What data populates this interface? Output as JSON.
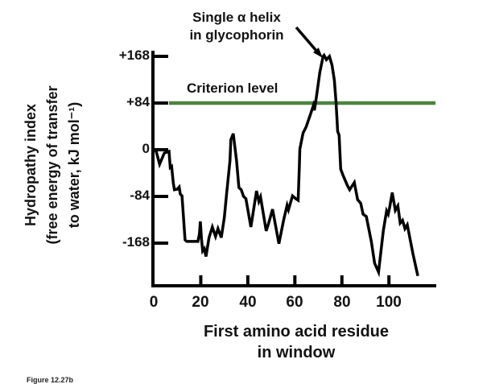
{
  "figure": {
    "annotation_line1": "Single α helix",
    "annotation_line2": "in glycophorin",
    "criterion_label": "Criterion level",
    "caption": "Figure 12.27b"
  },
  "chart_data": {
    "type": "line",
    "xlabel_lines": [
      "First amino acid residue",
      "in window"
    ],
    "ylabel_lines": [
      "Hydropathy index",
      "(free energy of transfer",
      "to water, kJ mol⁻¹)"
    ],
    "xlim": [
      0,
      120
    ],
    "ylim": [
      -245,
      178
    ],
    "grid": false,
    "x_ticks": [
      0,
      20,
      40,
      60,
      80,
      100
    ],
    "x_tick_labels": [
      "0",
      "20",
      "40",
      "60",
      "80",
      "100"
    ],
    "y_ticks": [
      {
        "value": 168,
        "label": "+168"
      },
      {
        "value": 84,
        "label": "+84"
      },
      {
        "value": 0,
        "label": "0"
      },
      {
        "value": -84,
        "label": "-84"
      },
      {
        "value": -168,
        "label": "-168"
      }
    ],
    "criterion_level": 84,
    "criterion_color": "#4c8340",
    "line_color": "#000000",
    "annotation": {
      "text": "Single α helix in glycophorin",
      "points_to_x": 73
    },
    "series": [
      {
        "name": "hydropathy index vs first residue in window",
        "points": [
          [
            0,
            0
          ],
          [
            1,
            -2
          ],
          [
            2.5,
            -26
          ],
          [
            4.5,
            -6
          ],
          [
            6.5,
            -3
          ],
          [
            7,
            -32
          ],
          [
            7.6,
            -30
          ],
          [
            8.3,
            -60
          ],
          [
            8.8,
            -72
          ],
          [
            10,
            -71
          ],
          [
            10.8,
            -67
          ],
          [
            11.3,
            -80
          ],
          [
            12,
            -83
          ],
          [
            13.3,
            -162
          ],
          [
            14,
            -165
          ],
          [
            18.8,
            -165
          ],
          [
            19.4,
            -152
          ],
          [
            19.8,
            -129
          ],
          [
            20.3,
            -160
          ],
          [
            20.8,
            -182
          ],
          [
            21.5,
            -178
          ],
          [
            22.2,
            -192
          ],
          [
            23.5,
            -158
          ],
          [
            24.9,
            -139
          ],
          [
            26.3,
            -156
          ],
          [
            27.3,
            -142
          ],
          [
            28.7,
            -158
          ],
          [
            30,
            -122
          ],
          [
            31,
            -78
          ],
          [
            32.4,
            -20
          ],
          [
            32.8,
            18
          ],
          [
            33.8,
            29
          ],
          [
            35.2,
            -20
          ],
          [
            36.2,
            -68
          ],
          [
            37.2,
            -72
          ],
          [
            38.2,
            -84
          ],
          [
            39.2,
            -88
          ],
          [
            41.3,
            -139
          ],
          [
            43.7,
            -74
          ],
          [
            44.7,
            -93
          ],
          [
            45.4,
            -85
          ],
          [
            47.8,
            -146
          ],
          [
            48.8,
            -133
          ],
          [
            50.5,
            -107
          ],
          [
            53.2,
            -169
          ],
          [
            55.3,
            -125
          ],
          [
            56.7,
            -100
          ],
          [
            57.3,
            -108
          ],
          [
            59,
            -83
          ],
          [
            60.4,
            -88
          ],
          [
            61.4,
            -91
          ],
          [
            61.9,
            -30
          ],
          [
            62.1,
            1
          ],
          [
            63.5,
            30
          ],
          [
            64.8,
            41
          ],
          [
            66.9,
            67
          ],
          [
            67.9,
            80
          ],
          [
            68.3,
            71
          ],
          [
            69.3,
            99
          ],
          [
            70.6,
            139
          ],
          [
            72,
            168
          ],
          [
            72.4,
            170
          ],
          [
            73.4,
            162
          ],
          [
            74.7,
            168
          ],
          [
            75.8,
            152
          ],
          [
            76.8,
            125
          ],
          [
            77.5,
            85
          ],
          [
            78.2,
            33
          ],
          [
            78.8,
            26
          ],
          [
            79.5,
            -35
          ],
          [
            80.5,
            -46
          ],
          [
            82.3,
            -64
          ],
          [
            83.3,
            -72
          ],
          [
            85.3,
            -59
          ],
          [
            86.7,
            -90
          ],
          [
            88,
            -96
          ],
          [
            89,
            -116
          ],
          [
            90.4,
            -120
          ],
          [
            92.5,
            -165
          ],
          [
            93.9,
            -204
          ],
          [
            95.6,
            -220
          ],
          [
            97.6,
            -146
          ],
          [
            99,
            -110
          ],
          [
            99.7,
            -116
          ],
          [
            100.3,
            -104
          ],
          [
            101.4,
            -77
          ],
          [
            102.7,
            -109
          ],
          [
            103.8,
            -101
          ],
          [
            104.8,
            -132
          ],
          [
            105.8,
            -127
          ],
          [
            106.8,
            -142
          ],
          [
            107.8,
            -135
          ],
          [
            110.2,
            -187
          ],
          [
            112.3,
            -227
          ]
        ]
      }
    ]
  }
}
